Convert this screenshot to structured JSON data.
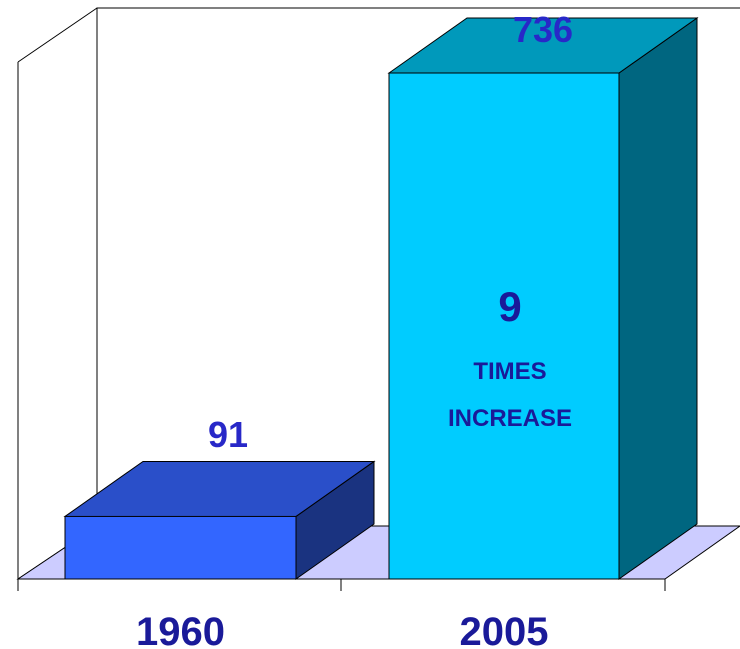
{
  "chart_data": {
    "type": "bar",
    "categories": [
      "1960",
      "2005"
    ],
    "values": [
      91,
      736
    ],
    "ylim": [
      0,
      800
    ],
    "grid": false,
    "legend": "none",
    "annotation": {
      "number": "9",
      "line1": "TIMES",
      "line2": "INCREASE"
    },
    "colors": {
      "bar1_front": "#3366ff",
      "bar1_top": "#2a4fc9",
      "bar1_side": "#1a3380",
      "bar2_front": "#00ccff",
      "bar2_top": "#0099bb",
      "bar2_side": "#006680",
      "floor": "#ccccff",
      "label": "#1a1a99",
      "value_label": "#2828c8",
      "axis": "#000000"
    }
  }
}
